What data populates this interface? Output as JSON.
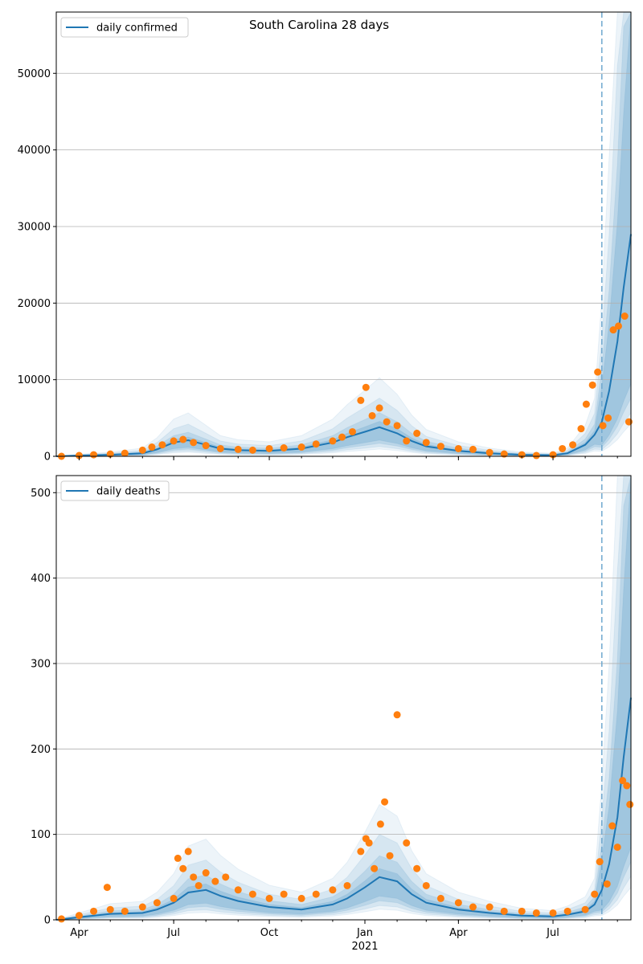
{
  "chart_data": [
    {
      "type": "line",
      "title": "South Carolina 28 days",
      "legend": {
        "entries": [
          "daily confirmed"
        ],
        "placement": "top-left"
      },
      "grid": "horizontal",
      "ylim": [
        0,
        58000
      ],
      "yticks": [
        0,
        10000,
        20000,
        30000,
        40000,
        50000
      ],
      "ytick_labels": [
        "0",
        "10000",
        "20000",
        "30000",
        "40000",
        "50000"
      ],
      "xlim": [
        "2020-03-10",
        "2021-09-14"
      ],
      "xticks": [
        "2020-04-01",
        "2020-07-01",
        "2020-10-01",
        "2021-01-01",
        "2021-04-01",
        "2021-07-01"
      ],
      "xtick_labels": [
        "Apr",
        "Jul",
        "Oct",
        "Jan",
        "Apr",
        "Jul"
      ],
      "forecast_start": "2021-08-17",
      "series": [
        {
          "name": "daily confirmed",
          "kind": "line",
          "color": "#1f77b4",
          "x": [
            "2020-03-10",
            "2020-04-01",
            "2020-05-01",
            "2020-06-01",
            "2020-06-15",
            "2020-07-01",
            "2020-07-15",
            "2020-08-01",
            "2020-08-15",
            "2020-09-01",
            "2020-10-01",
            "2020-11-01",
            "2020-12-01",
            "2020-12-15",
            "2021-01-01",
            "2021-01-15",
            "2021-02-01",
            "2021-02-15",
            "2021-03-01",
            "2021-04-01",
            "2021-05-01",
            "2021-06-01",
            "2021-07-01",
            "2021-07-15",
            "2021-08-01",
            "2021-08-10",
            "2021-08-17",
            "2021-08-24",
            "2021-09-01",
            "2021-09-07",
            "2021-09-14"
          ],
          "values": [
            0,
            100,
            200,
            400,
            900,
            1800,
            2100,
            1500,
            1000,
            800,
            700,
            1000,
            1800,
            2500,
            3200,
            3800,
            3000,
            2000,
            1300,
            700,
            400,
            200,
            150,
            400,
            1500,
            2800,
            4500,
            8500,
            15000,
            22000,
            29000
          ]
        },
        {
          "name": "",
          "kind": "scatter",
          "color": "#ff7f0e",
          "x": [
            "2020-03-15",
            "2020-04-01",
            "2020-04-15",
            "2020-05-01",
            "2020-05-15",
            "2020-06-01",
            "2020-06-10",
            "2020-06-20",
            "2020-07-01",
            "2020-07-10",
            "2020-07-20",
            "2020-08-01",
            "2020-08-15",
            "2020-09-01",
            "2020-09-15",
            "2020-10-01",
            "2020-10-15",
            "2020-11-01",
            "2020-11-15",
            "2020-12-01",
            "2020-12-10",
            "2020-12-20",
            "2020-12-28",
            "2021-01-02",
            "2021-01-08",
            "2021-01-15",
            "2021-01-22",
            "2021-02-01",
            "2021-02-10",
            "2021-02-20",
            "2021-03-01",
            "2021-03-15",
            "2021-04-01",
            "2021-04-15",
            "2021-05-01",
            "2021-05-15",
            "2021-06-01",
            "2021-06-15",
            "2021-07-01",
            "2021-07-10",
            "2021-07-20",
            "2021-07-28",
            "2021-08-02",
            "2021-08-08",
            "2021-08-13",
            "2021-08-18",
            "2021-08-23",
            "2021-08-28",
            "2021-09-02",
            "2021-09-08",
            "2021-09-12"
          ],
          "values": [
            0,
            100,
            200,
            300,
            400,
            800,
            1200,
            1500,
            2000,
            2200,
            1800,
            1400,
            1000,
            900,
            800,
            1000,
            1100,
            1200,
            1600,
            2000,
            2500,
            3200,
            7300,
            9000,
            5300,
            6300,
            4500,
            4000,
            2000,
            3000,
            1800,
            1300,
            1000,
            900,
            500,
            300,
            200,
            100,
            200,
            1000,
            1500,
            3600,
            6800,
            9300,
            11000,
            4000,
            5000,
            16500,
            17000,
            18300,
            4500
          ]
        }
      ]
    },
    {
      "type": "line",
      "legend": {
        "entries": [
          "daily deaths"
        ],
        "placement": "top-left"
      },
      "grid": "horizontal",
      "ylim": [
        0,
        520
      ],
      "yticks": [
        0,
        100,
        200,
        300,
        400,
        500
      ],
      "ytick_labels": [
        "0",
        "100",
        "200",
        "300",
        "400",
        "500"
      ],
      "xlim": [
        "2020-03-10",
        "2021-09-14"
      ],
      "xticks": [
        "2020-04-01",
        "2020-07-01",
        "2020-10-01",
        "2021-01-01",
        "2021-04-01",
        "2021-07-01"
      ],
      "xtick_labels": [
        "Apr",
        "Jul",
        "Oct",
        "Jan",
        "Apr",
        "Jul"
      ],
      "xtick_year_label": "2021",
      "forecast_start": "2021-08-17",
      "series": [
        {
          "name": "daily deaths",
          "kind": "line",
          "color": "#1f77b4",
          "x": [
            "2020-03-10",
            "2020-04-01",
            "2020-05-01",
            "2020-06-01",
            "2020-06-15",
            "2020-07-01",
            "2020-07-15",
            "2020-08-01",
            "2020-08-15",
            "2020-09-01",
            "2020-10-01",
            "2020-11-01",
            "2020-12-01",
            "2020-12-15",
            "2021-01-01",
            "2021-01-15",
            "2021-02-01",
            "2021-02-15",
            "2021-03-01",
            "2021-04-01",
            "2021-05-01",
            "2021-06-01",
            "2021-07-01",
            "2021-07-15",
            "2021-08-01",
            "2021-08-10",
            "2021-08-17",
            "2021-08-24",
            "2021-09-01",
            "2021-09-07",
            "2021-09-14"
          ],
          "values": [
            0,
            3,
            7,
            8,
            12,
            20,
            32,
            35,
            28,
            22,
            15,
            12,
            18,
            25,
            38,
            50,
            45,
            30,
            20,
            12,
            8,
            5,
            4,
            6,
            10,
            18,
            35,
            65,
            120,
            190,
            260
          ]
        },
        {
          "name": "",
          "kind": "scatter",
          "color": "#ff7f0e",
          "x": [
            "2020-03-15",
            "2020-04-01",
            "2020-04-15",
            "2020-04-28",
            "2020-05-01",
            "2020-05-15",
            "2020-06-01",
            "2020-06-15",
            "2020-07-01",
            "2020-07-05",
            "2020-07-10",
            "2020-07-15",
            "2020-07-20",
            "2020-07-25",
            "2020-08-01",
            "2020-08-10",
            "2020-08-20",
            "2020-09-01",
            "2020-09-15",
            "2020-10-01",
            "2020-10-15",
            "2020-11-01",
            "2020-11-15",
            "2020-12-01",
            "2020-12-15",
            "2020-12-28",
            "2021-01-02",
            "2021-01-05",
            "2021-01-10",
            "2021-01-16",
            "2021-01-20",
            "2021-01-25",
            "2021-02-01",
            "2021-02-10",
            "2021-02-20",
            "2021-03-01",
            "2021-03-15",
            "2021-04-01",
            "2021-04-15",
            "2021-05-01",
            "2021-05-15",
            "2021-06-01",
            "2021-06-15",
            "2021-07-01",
            "2021-07-15",
            "2021-08-01",
            "2021-08-10",
            "2021-08-15",
            "2021-08-22",
            "2021-08-27",
            "2021-09-01",
            "2021-09-06",
            "2021-09-10",
            "2021-09-13"
          ],
          "values": [
            1,
            5,
            10,
            38,
            12,
            10,
            15,
            20,
            25,
            72,
            60,
            80,
            50,
            40,
            55,
            45,
            50,
            35,
            30,
            25,
            30,
            25,
            30,
            35,
            40,
            80,
            95,
            90,
            60,
            112,
            138,
            75,
            240,
            90,
            60,
            40,
            25,
            20,
            15,
            15,
            10,
            10,
            8,
            8,
            10,
            12,
            30,
            68,
            42,
            110,
            85,
            163,
            157,
            135
          ]
        }
      ]
    }
  ]
}
